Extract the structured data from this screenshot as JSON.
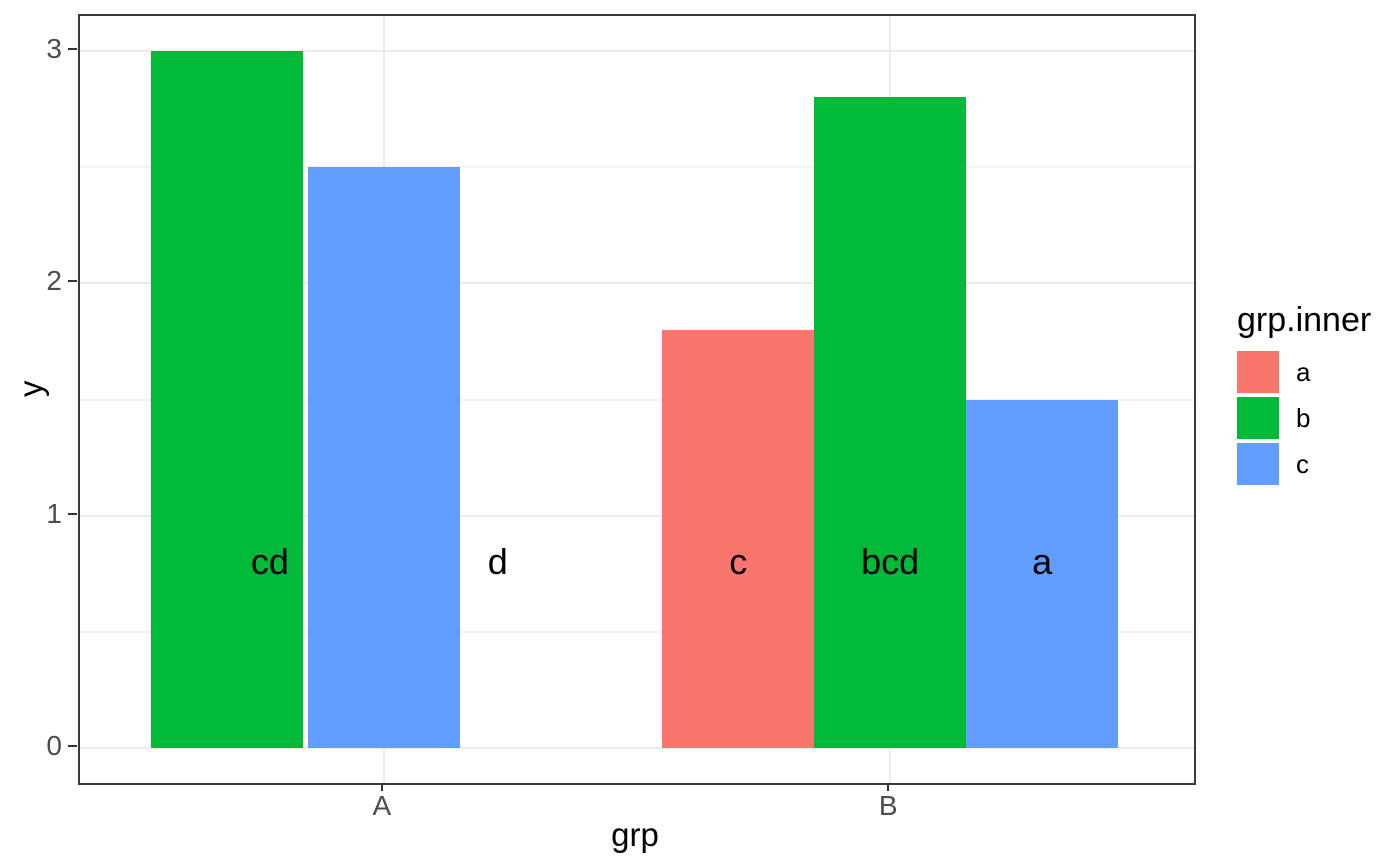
{
  "chart_data": {
    "type": "bar",
    "title": "",
    "xlabel": "grp",
    "ylabel": "y",
    "x_axis": {
      "range": [
        0.4,
        2.6
      ],
      "ticks": [
        {
          "label": "A",
          "pos": 1
        },
        {
          "label": "B",
          "pos": 2
        }
      ]
    },
    "y_axis": {
      "range": [
        -0.15,
        3.15
      ],
      "ticks": [
        {
          "label": "0",
          "pos": 0
        },
        {
          "label": "1",
          "pos": 1
        },
        {
          "label": "2",
          "pos": 2
        },
        {
          "label": "3",
          "pos": 3
        }
      ],
      "minor_ticks": [
        0.5,
        1.5,
        2.5
      ]
    },
    "bar_width": 0.3,
    "bars": [
      {
        "grp": "A",
        "grp_inner": "b",
        "value": 3.0,
        "x": 0.69
      },
      {
        "grp": "A",
        "grp_inner": "c",
        "value": 2.5,
        "x": 1.0
      },
      {
        "grp": "B",
        "grp_inner": "a",
        "value": 1.8,
        "x": 1.7
      },
      {
        "grp": "B",
        "grp_inner": "b",
        "value": 2.8,
        "x": 2.0
      },
      {
        "grp": "B",
        "grp_inner": "c",
        "value": 1.5,
        "x": 2.3
      }
    ],
    "text_labels": [
      {
        "text": "cd",
        "x": 0.775,
        "y": 0.8
      },
      {
        "text": "d",
        "x": 1.225,
        "y": 0.8
      },
      {
        "text": "c",
        "x": 1.7,
        "y": 0.8
      },
      {
        "text": "bcd",
        "x": 2.0,
        "y": 0.8
      },
      {
        "text": "a",
        "x": 2.3,
        "y": 0.8
      }
    ],
    "legend": {
      "title": "grp.inner",
      "position": "right",
      "items": [
        {
          "label": "a",
          "color": "#F8766D"
        },
        {
          "label": "b",
          "color": "#00BA38"
        },
        {
          "label": "c",
          "color": "#619CFF"
        }
      ]
    },
    "fill_colors": {
      "a": "#F8766D",
      "b": "#00BA38",
      "c": "#619CFF"
    },
    "style_colors": {
      "grid_major": "#EBEBEB",
      "grid_minor": "#F2F2F2",
      "panel_border": "#3A3A3A",
      "tick_mark": "#333333",
      "tick_label": "#4D4D4D",
      "axis_title": "#000000",
      "bar_label": "#000000",
      "background": "#FFFFFF"
    }
  }
}
